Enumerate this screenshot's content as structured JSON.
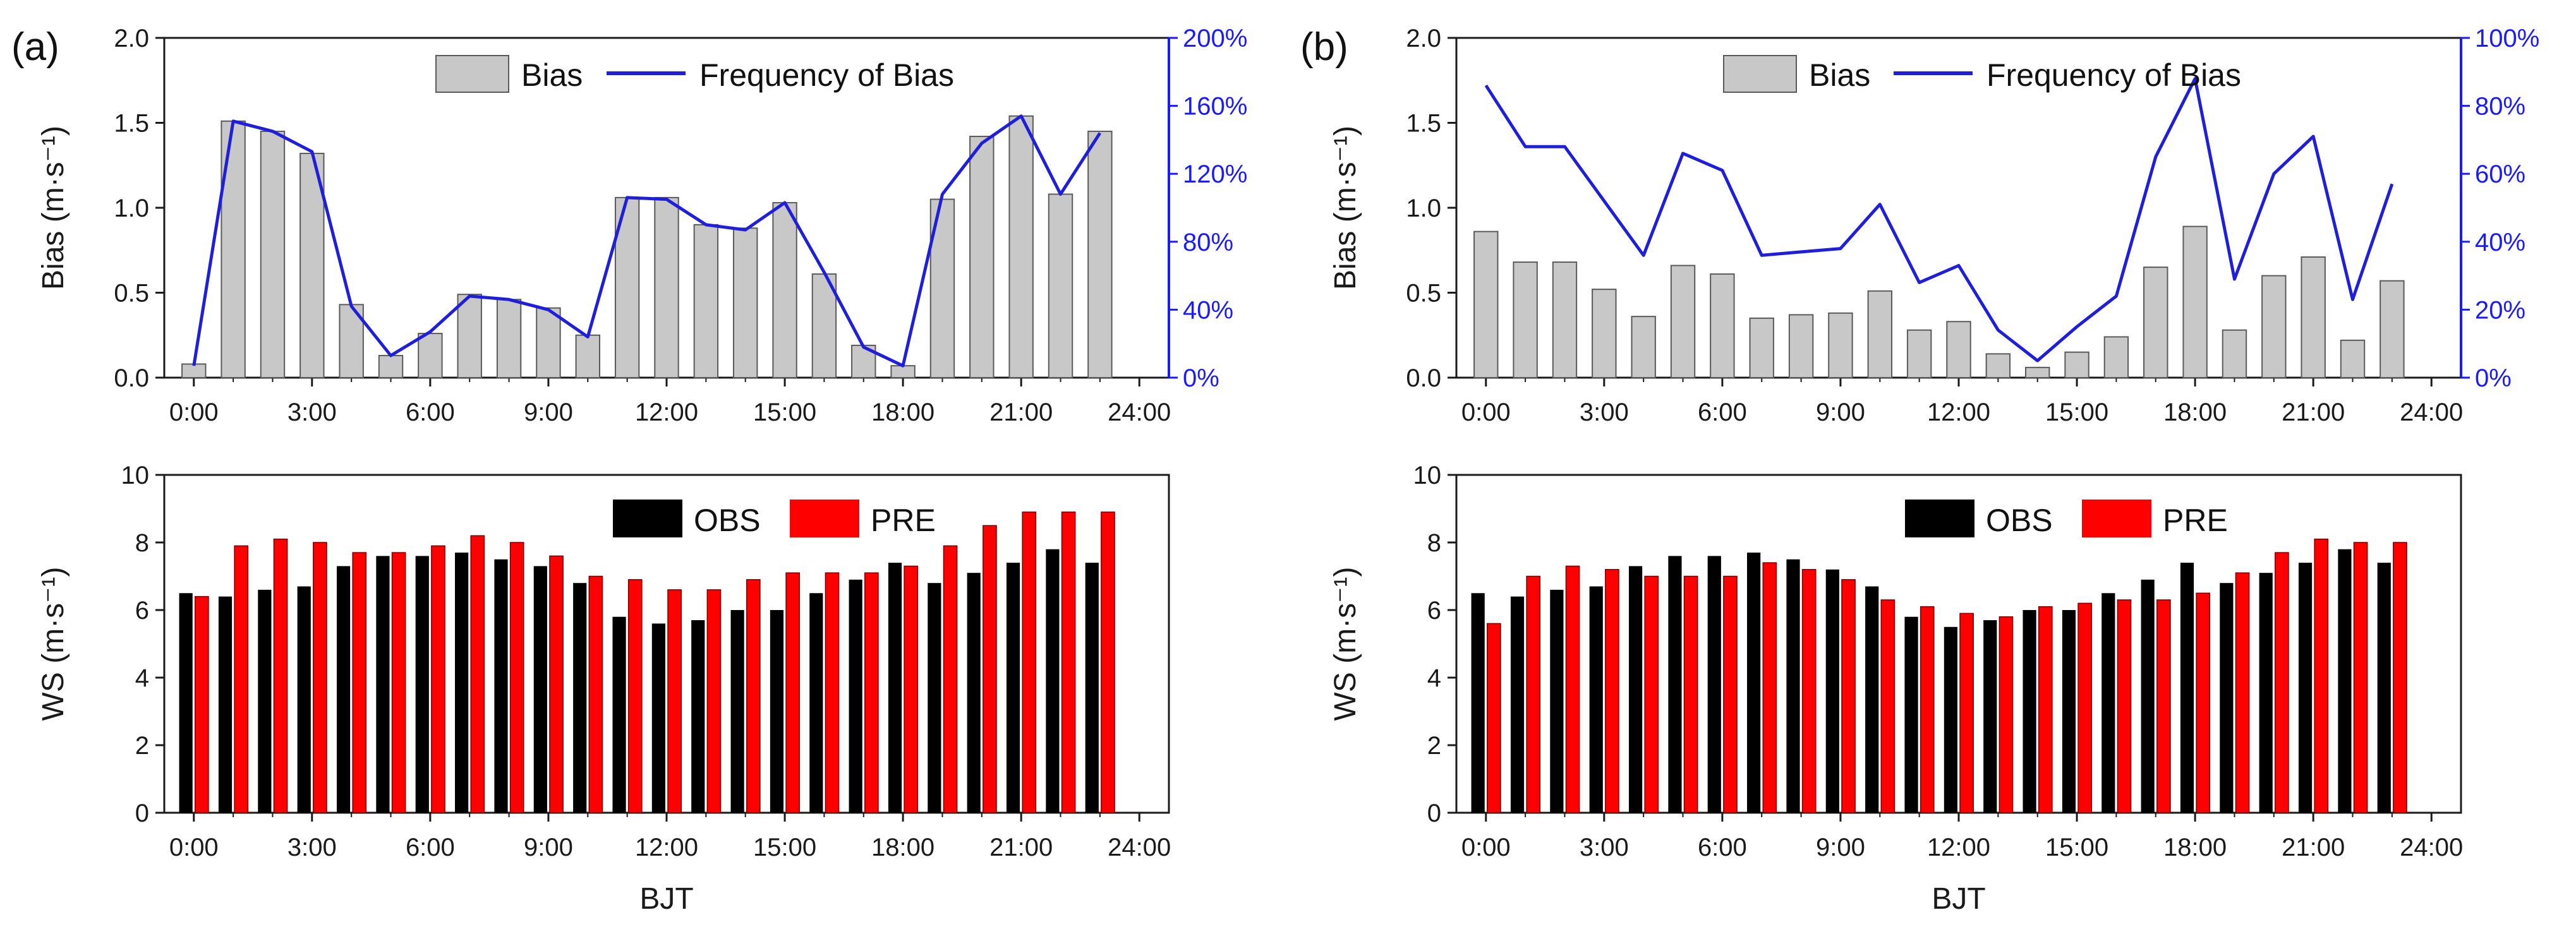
{
  "colors": {
    "bias_bar": "#c8c8c8",
    "bias_bar_stroke": "#5a5a5a",
    "freq_line": "#1f1fdb",
    "obs": "#000000",
    "pre": "#ff0000",
    "axis": "#1a1a1a",
    "right_axis": "#1a1aff"
  },
  "chart_data": [
    {
      "panel": "(a)",
      "type": "bar+line",
      "title": "",
      "xlabel": "",
      "ylabel": "Bias (m·s⁻¹)",
      "y2label": "",
      "x_hours": [
        0,
        1,
        2,
        3,
        4,
        5,
        6,
        7,
        8,
        9,
        10,
        11,
        12,
        13,
        14,
        15,
        16,
        17,
        18,
        19,
        20,
        21,
        22,
        23
      ],
      "xticks": [
        "0:00",
        "3:00",
        "6:00",
        "9:00",
        "12:00",
        "15:00",
        "18:00",
        "21:00",
        "24:00"
      ],
      "ylim": [
        0,
        2.0
      ],
      "yticks": [
        "0.0",
        "0.5",
        "1.0",
        "1.5",
        "2.0"
      ],
      "y2lim": [
        0,
        200
      ],
      "y2ticks": [
        "0%",
        "40%",
        "80%",
        "120%",
        "160%",
        "200%"
      ],
      "legend": {
        "bar": "Bias",
        "line": "Frequency of Bias"
      },
      "series": [
        {
          "name": "Bias",
          "kind": "bar",
          "values": [
            0.08,
            1.51,
            1.45,
            1.32,
            0.43,
            0.13,
            0.26,
            0.49,
            0.46,
            0.41,
            0.25,
            1.06,
            1.06,
            0.9,
            0.88,
            1.03,
            0.61,
            0.19,
            0.07,
            1.05,
            1.42,
            1.54,
            1.08,
            1.45
          ]
        },
        {
          "name": "Frequency of Bias",
          "kind": "line",
          "axis": "right",
          "values": [
            7,
            151,
            145,
            133,
            42,
            13,
            27,
            48,
            46,
            40,
            24,
            106,
            105,
            90,
            87,
            103,
            62,
            18,
            7,
            108,
            138,
            154,
            108,
            144
          ]
        }
      ]
    },
    {
      "panel": "(b)",
      "type": "bar+line",
      "title": "",
      "xlabel": "",
      "ylabel": "Bias (m·s⁻¹)",
      "y2label": "",
      "x_hours": [
        0,
        1,
        2,
        3,
        4,
        5,
        6,
        7,
        8,
        9,
        10,
        11,
        12,
        13,
        14,
        15,
        16,
        17,
        18,
        19,
        20,
        21,
        22,
        23
      ],
      "xticks": [
        "0:00",
        "3:00",
        "6:00",
        "9:00",
        "12:00",
        "15:00",
        "18:00",
        "21:00",
        "24:00"
      ],
      "ylim": [
        0,
        2.0
      ],
      "yticks": [
        "0.0",
        "0.5",
        "1.0",
        "1.5",
        "2.0"
      ],
      "y2lim": [
        0,
        100
      ],
      "y2ticks": [
        "0%",
        "20%",
        "40%",
        "60%",
        "80%",
        "100%"
      ],
      "legend": {
        "bar": "Bias",
        "line": "Frequency of Bias"
      },
      "series": [
        {
          "name": "Bias",
          "kind": "bar",
          "values": [
            0.86,
            0.68,
            0.68,
            0.52,
            0.36,
            0.66,
            0.61,
            0.35,
            0.37,
            0.38,
            0.51,
            0.28,
            0.33,
            0.14,
            0.06,
            0.15,
            0.24,
            0.65,
            0.89,
            0.28,
            0.6,
            0.71,
            0.22,
            0.57
          ]
        },
        {
          "name": "Frequency of Bias",
          "kind": "line",
          "axis": "right",
          "values": [
            86,
            68,
            68,
            52,
            36,
            66,
            61,
            36,
            37,
            38,
            51,
            28,
            33,
            14,
            5,
            15,
            24,
            65,
            88,
            29,
            60,
            71,
            23,
            57
          ]
        }
      ]
    },
    {
      "panel": "(a) lower",
      "type": "bar",
      "title": "",
      "xlabel": "BJT",
      "ylabel": "WS (m·s⁻¹)",
      "x_hours": [
        0,
        1,
        2,
        3,
        4,
        5,
        6,
        7,
        8,
        9,
        10,
        11,
        12,
        13,
        14,
        15,
        16,
        17,
        18,
        19,
        20,
        21,
        22,
        23
      ],
      "xticks": [
        "0:00",
        "3:00",
        "6:00",
        "9:00",
        "12:00",
        "15:00",
        "18:00",
        "21:00",
        "24:00"
      ],
      "ylim": [
        0,
        10
      ],
      "yticks": [
        "0",
        "2",
        "4",
        "6",
        "8",
        "10"
      ],
      "legend": {
        "obs": "OBS",
        "pre": "PRE"
      },
      "series": [
        {
          "name": "OBS",
          "values": [
            6.5,
            6.4,
            6.6,
            6.7,
            7.3,
            7.6,
            7.6,
            7.7,
            7.5,
            7.3,
            6.8,
            5.8,
            5.6,
            5.7,
            6.0,
            6.0,
            6.5,
            6.9,
            7.4,
            6.8,
            7.1,
            7.4,
            7.8,
            7.4
          ]
        },
        {
          "name": "PRE",
          "values": [
            6.4,
            7.9,
            8.1,
            8.0,
            7.7,
            7.7,
            7.9,
            8.2,
            8.0,
            7.6,
            7.0,
            6.9,
            6.6,
            6.6,
            6.9,
            7.1,
            7.1,
            7.1,
            7.3,
            7.9,
            8.5,
            8.9,
            8.9,
            8.9
          ]
        }
      ]
    },
    {
      "panel": "(b) lower",
      "type": "bar",
      "title": "",
      "xlabel": "BJT",
      "ylabel": "WS (m·s⁻¹)",
      "x_hours": [
        0,
        1,
        2,
        3,
        4,
        5,
        6,
        7,
        8,
        9,
        10,
        11,
        12,
        13,
        14,
        15,
        16,
        17,
        18,
        19,
        20,
        21,
        22,
        23
      ],
      "xticks": [
        "0:00",
        "3:00",
        "6:00",
        "9:00",
        "12:00",
        "15:00",
        "18:00",
        "21:00",
        "24:00"
      ],
      "ylim": [
        0,
        10
      ],
      "yticks": [
        "0",
        "2",
        "4",
        "6",
        "8",
        "10"
      ],
      "legend": {
        "obs": "OBS",
        "pre": "PRE"
      },
      "series": [
        {
          "name": "OBS",
          "values": [
            6.5,
            6.4,
            6.6,
            6.7,
            7.3,
            7.6,
            7.6,
            7.7,
            7.5,
            7.2,
            6.7,
            5.8,
            5.5,
            5.7,
            6.0,
            6.0,
            6.5,
            6.9,
            7.4,
            6.8,
            7.1,
            7.4,
            7.8,
            7.4
          ]
        },
        {
          "name": "PRE",
          "values": [
            5.6,
            7.0,
            7.3,
            7.2,
            7.0,
            7.0,
            7.0,
            7.4,
            7.2,
            6.9,
            6.3,
            6.1,
            5.9,
            5.8,
            6.1,
            6.2,
            6.3,
            6.3,
            6.5,
            7.1,
            7.7,
            8.1,
            8.0,
            8.0
          ]
        }
      ]
    }
  ]
}
